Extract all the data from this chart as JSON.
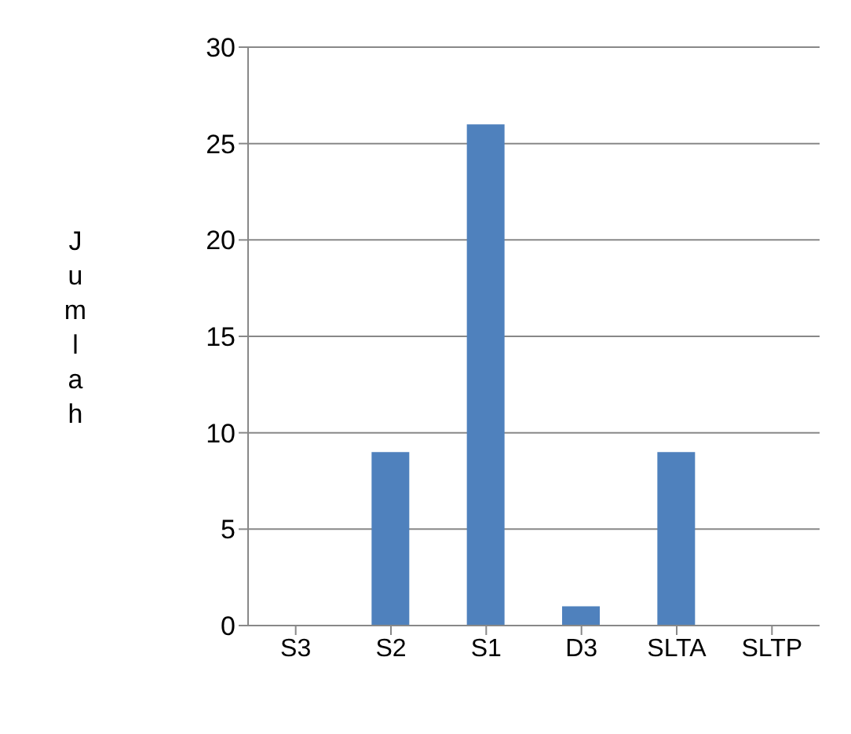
{
  "chart_data": {
    "type": "bar",
    "ylabel": "Jumlah",
    "categories": [
      "S3",
      "S2",
      "S1",
      "D3",
      "SLTA",
      "SLTP"
    ],
    "values": [
      0,
      9,
      26,
      1,
      9,
      0
    ],
    "color": "#4f81bd",
    "ylim": [
      0,
      30
    ],
    "yticks": [
      0,
      5,
      10,
      15,
      20,
      25,
      30
    ],
    "grid": "y",
    "legend": false
  }
}
